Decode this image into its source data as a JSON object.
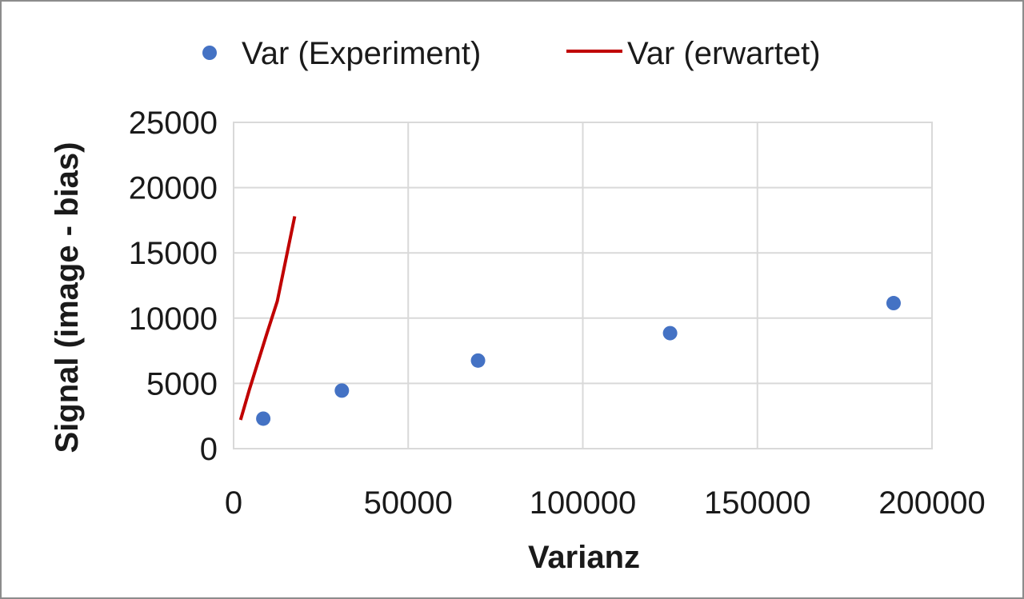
{
  "chart_data": {
    "type": "scatter",
    "xlabel": "Varianz",
    "ylabel": "Signal (image - bias)",
    "xlim": [
      0,
      200000
    ],
    "ylim": [
      0,
      25000
    ],
    "x_ticks": [
      "0",
      "50000",
      "100000",
      "150000",
      "200000"
    ],
    "y_ticks": [
      "0",
      "5000",
      "10000",
      "15000",
      "20000",
      "25000"
    ],
    "grid": true,
    "legend_position": "top",
    "series": [
      {
        "name": "Var (Experiment)",
        "type": "scatter",
        "color": "#4472c4",
        "points": [
          {
            "x": 8500,
            "y": 2300
          },
          {
            "x": 31000,
            "y": 4450
          },
          {
            "x": 70000,
            "y": 6750
          },
          {
            "x": 125000,
            "y": 8850
          },
          {
            "x": 189000,
            "y": 11150
          }
        ]
      },
      {
        "name": "Var (erwartet)",
        "type": "line",
        "color": "#c00000",
        "points": [
          {
            "x": 2000,
            "y": 2200
          },
          {
            "x": 4500,
            "y": 4500
          },
          {
            "x": 9500,
            "y": 8800
          },
          {
            "x": 12500,
            "y": 11300
          },
          {
            "x": 17500,
            "y": 17800
          }
        ]
      }
    ]
  }
}
